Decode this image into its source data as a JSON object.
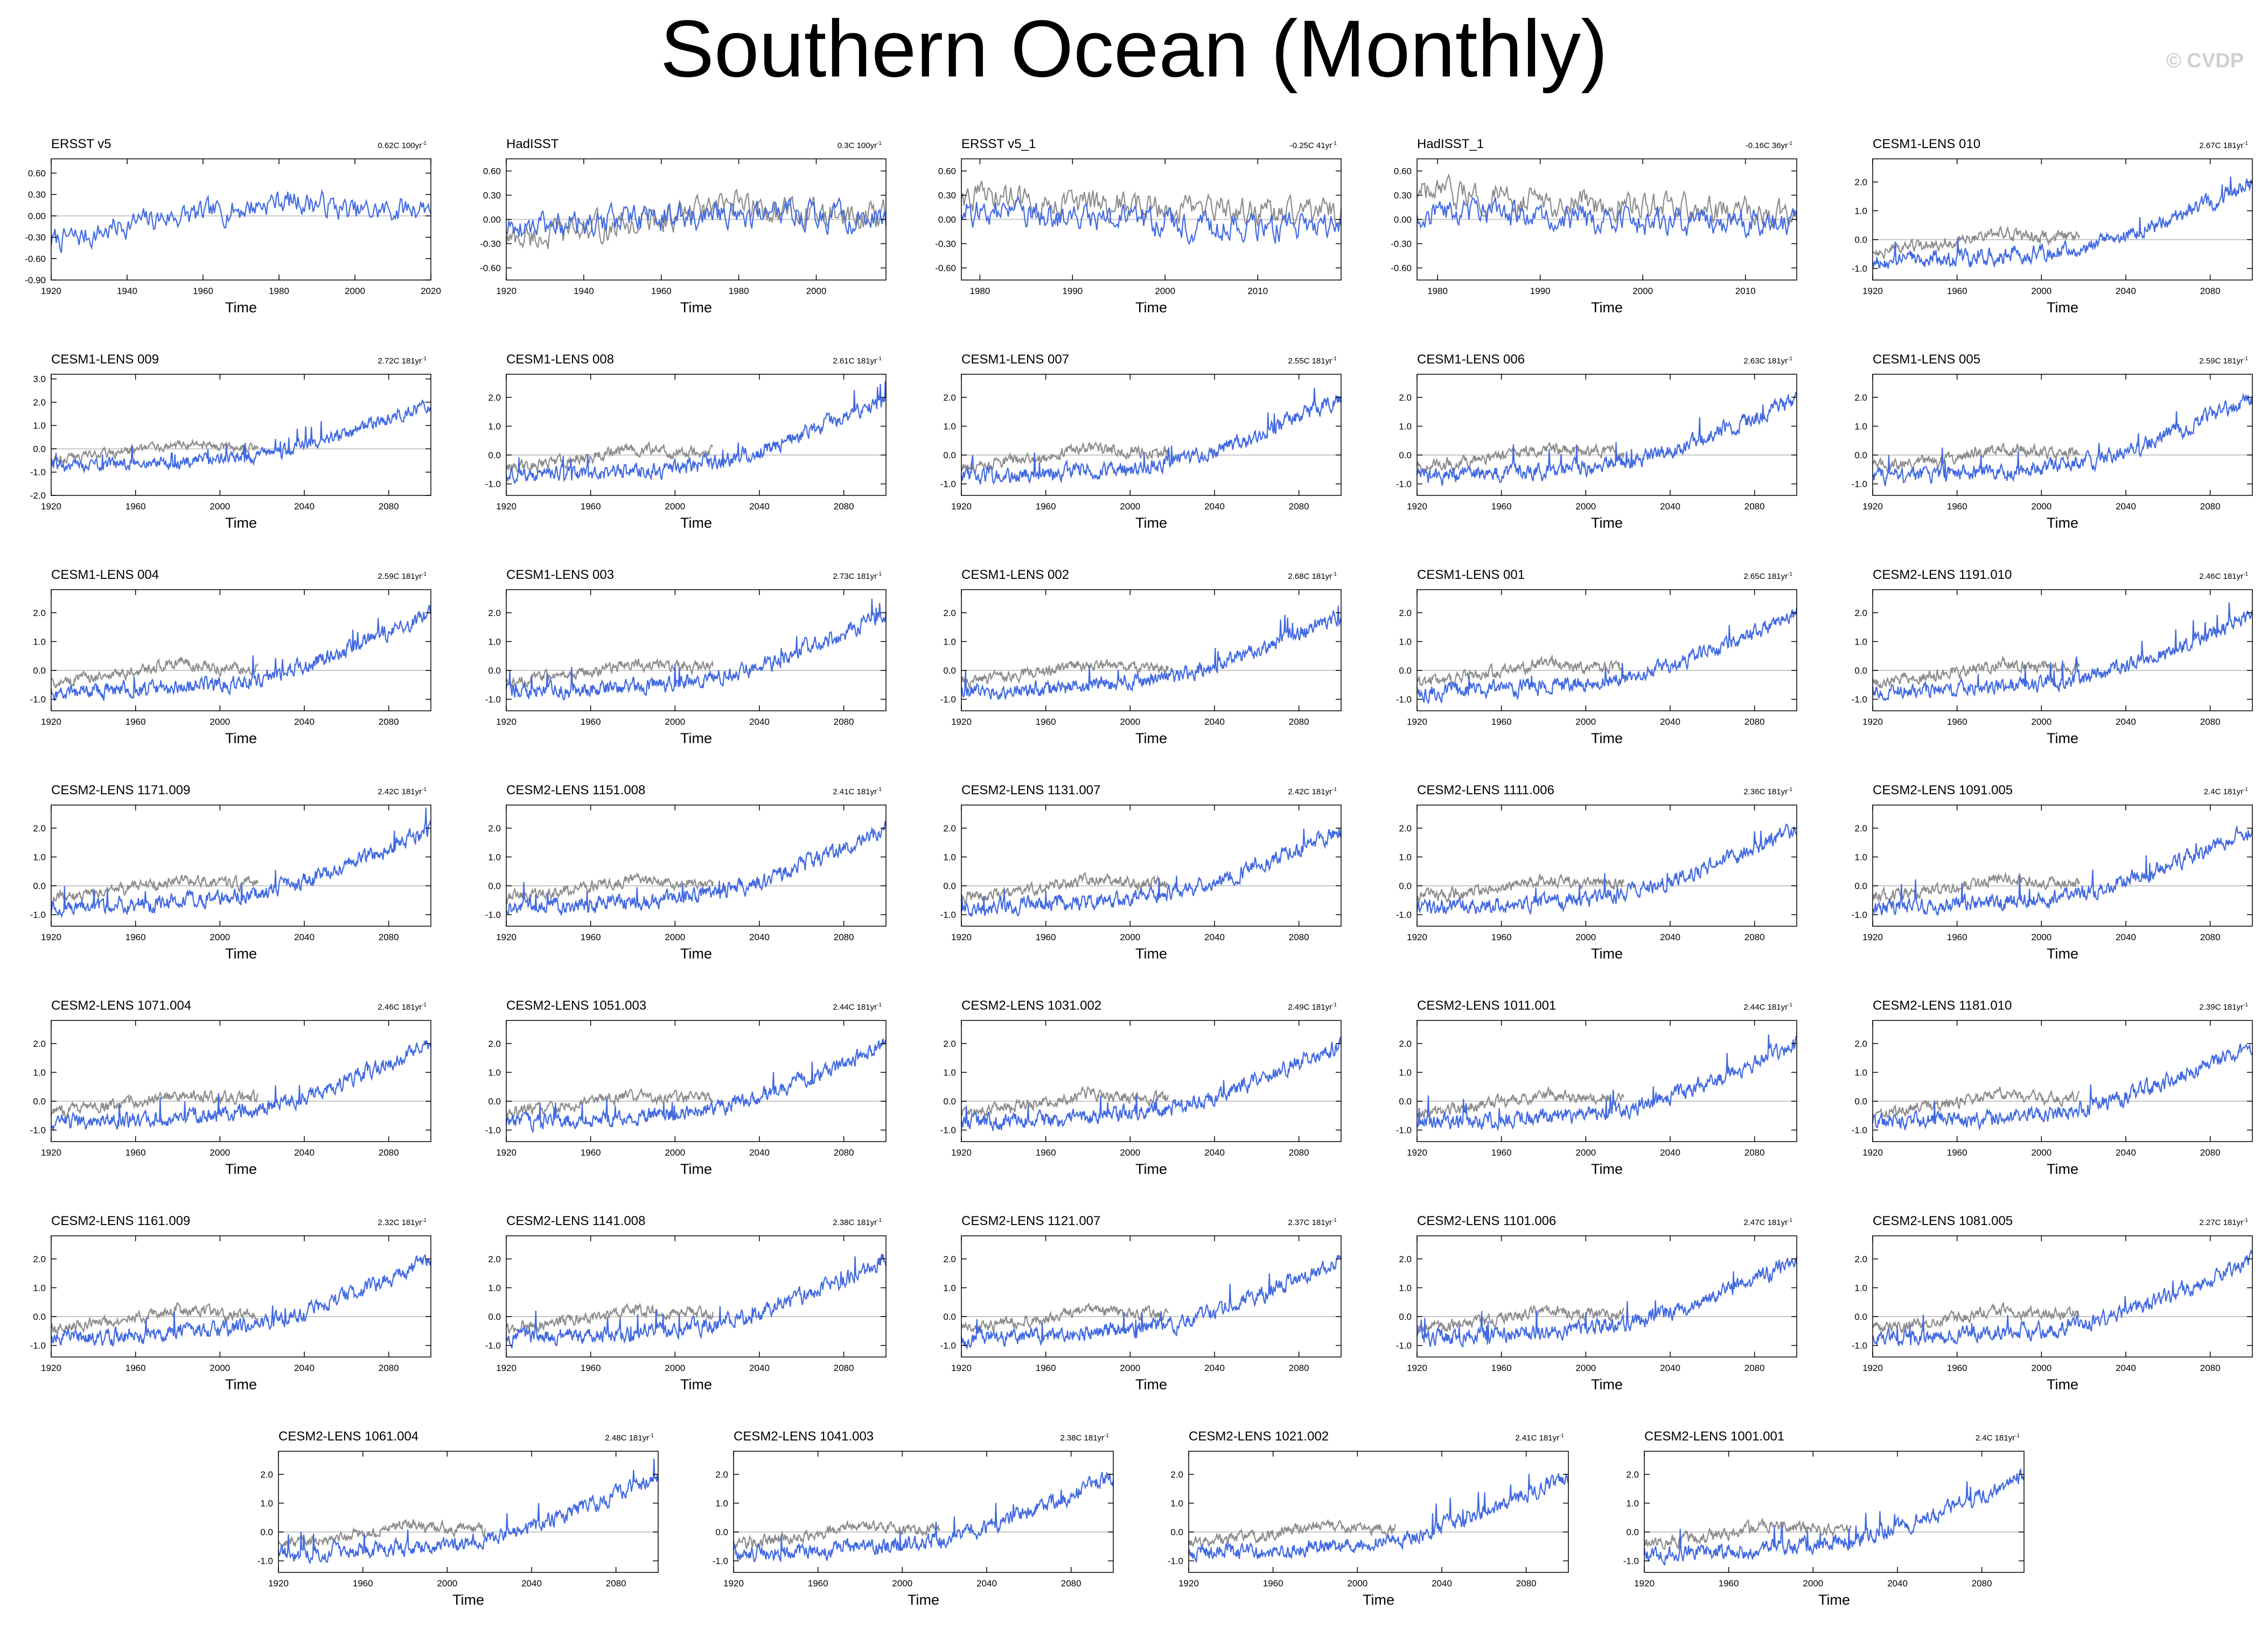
{
  "title": "Southern Ocean (Monthly)",
  "watermark": "© CVDP",
  "colors": {
    "model": "#4169e1",
    "obs": "#8c8c8c",
    "zero_line": "#c8c8c8",
    "frame": "#000000"
  },
  "chart_data": [
    {
      "type": "line",
      "title": "ERSST v5",
      "trend": "0.62C 100yr",
      "xlabel": "Time",
      "xlim": [
        1920,
        2020
      ],
      "ylim": [
        -0.9,
        0.8
      ],
      "xticks": [
        1920,
        1940,
        1960,
        1980,
        2000,
        2020
      ],
      "yticks": [
        -0.9,
        -0.6,
        -0.3,
        0.0,
        0.3,
        0.6
      ],
      "ytick_labels": [
        "-0.90",
        "-0.60",
        "-0.30",
        "0.00",
        "0.30",
        "0.60"
      ],
      "series": [
        {
          "color": "blue",
          "x": [
            1920,
            1930,
            1940,
            1950,
            1960,
            1970,
            1980,
            1990,
            2000,
            2010,
            2020
          ],
          "y": [
            -0.35,
            -0.28,
            -0.12,
            -0.02,
            0.02,
            0.1,
            0.22,
            0.18,
            0.05,
            0.08,
            0.15
          ]
        }
      ]
    },
    {
      "type": "line",
      "title": "HadISST",
      "trend": "0.3C 100yr",
      "xlabel": "Time",
      "xlim": [
        1920,
        2018
      ],
      "ylim": [
        -0.75,
        0.75
      ],
      "xticks": [
        1920,
        1940,
        1960,
        1980,
        2000
      ],
      "yticks": [
        -0.6,
        -0.3,
        0.0,
        0.3,
        0.6
      ],
      "ytick_labels": [
        "-0.60",
        "-0.30",
        "0.00",
        "0.30",
        "0.60"
      ],
      "series": [
        {
          "color": "gray",
          "x": [
            1920,
            1930,
            1940,
            1950,
            1960,
            1970,
            1980,
            1990,
            2000,
            2010,
            2018
          ],
          "y": [
            -0.25,
            -0.2,
            -0.12,
            -0.08,
            0.0,
            0.1,
            0.18,
            0.1,
            0.05,
            0.02,
            0.05
          ]
        },
        {
          "color": "blue",
          "x": [
            1920,
            1930,
            1940,
            1950,
            1960,
            1970,
            1980,
            1990,
            2000,
            2010,
            2018
          ],
          "y": [
            -0.1,
            -0.08,
            -0.05,
            0.0,
            0.02,
            0.05,
            0.1,
            0.05,
            0.03,
            0.02,
            0.0
          ]
        }
      ]
    },
    {
      "type": "line",
      "title": "ERSST v5_1",
      "trend": "-0.25C 41yr",
      "xlabel": "Time",
      "xlim": [
        1978,
        2019
      ],
      "ylim": [
        -0.75,
        0.75
      ],
      "xticks": [
        1980,
        1990,
        2000,
        2010
      ],
      "yticks": [
        -0.6,
        -0.3,
        0.0,
        0.3,
        0.6
      ],
      "ytick_labels": [
        "-0.60",
        "-0.30",
        "0.00",
        "0.30",
        "0.60"
      ],
      "series": [
        {
          "color": "gray",
          "x": [
            1978,
            1985,
            1990,
            1995,
            2000,
            2005,
            2010,
            2015,
            2019
          ],
          "y": [
            0.3,
            0.25,
            0.2,
            0.18,
            0.15,
            0.1,
            0.1,
            0.08,
            0.1
          ]
        },
        {
          "color": "blue",
          "x": [
            1978,
            1985,
            1990,
            1995,
            2000,
            2005,
            2010,
            2015,
            2019
          ],
          "y": [
            0.1,
            0.05,
            0.02,
            0.0,
            -0.05,
            -0.08,
            -0.1,
            -0.1,
            -0.05
          ]
        }
      ]
    },
    {
      "type": "line",
      "title": "HadISST_1",
      "trend": "-0.16C 36yr",
      "xlabel": "Time",
      "xlim": [
        1978,
        2015
      ],
      "ylim": [
        -0.75,
        0.75
      ],
      "xticks": [
        1980,
        1990,
        2000,
        2010
      ],
      "yticks": [
        -0.6,
        -0.3,
        0.0,
        0.3,
        0.6
      ],
      "ytick_labels": [
        "-0.60",
        "-0.30",
        "0.00",
        "0.30",
        "0.60"
      ],
      "series": [
        {
          "color": "gray",
          "x": [
            1978,
            1985,
            1990,
            1995,
            2000,
            2005,
            2010,
            2015
          ],
          "y": [
            0.3,
            0.28,
            0.22,
            0.2,
            0.15,
            0.12,
            0.1,
            0.08
          ]
        },
        {
          "color": "blue",
          "x": [
            1978,
            1985,
            1990,
            1995,
            2000,
            2005,
            2010,
            2015
          ],
          "y": [
            0.08,
            0.05,
            0.02,
            0.0,
            -0.02,
            -0.05,
            -0.05,
            -0.08
          ]
        }
      ]
    },
    {
      "type": "line",
      "title": "CESM1-LENS 010",
      "trend": "2.67C 181yr"
    },
    {
      "type": "line",
      "title": "CESM1-LENS 009",
      "trend": "2.72C 181yr",
      "ylim": [
        -2.0,
        3.2
      ],
      "yticks": [
        -2.0,
        -1.0,
        0.0,
        1.0,
        2.0,
        3.0
      ]
    },
    {
      "type": "line",
      "title": "CESM1-LENS 008",
      "trend": "2.61C 181yr"
    },
    {
      "type": "line",
      "title": "CESM1-LENS 007",
      "trend": "2.55C 181yr"
    },
    {
      "type": "line",
      "title": "CESM1-LENS 006",
      "trend": "2.63C 181yr"
    },
    {
      "type": "line",
      "title": "CESM1-LENS 005",
      "trend": "2.59C 181yr"
    },
    {
      "type": "line",
      "title": "CESM1-LENS 004",
      "trend": "2.59C 181yr"
    },
    {
      "type": "line",
      "title": "CESM1-LENS 003",
      "trend": "2.73C 181yr"
    },
    {
      "type": "line",
      "title": "CESM1-LENS 002",
      "trend": "2.68C 181yr"
    },
    {
      "type": "line",
      "title": "CESM1-LENS 001",
      "trend": "2.65C 181yr"
    },
    {
      "type": "line",
      "title": "CESM2-LENS 1191.010",
      "trend": "2.46C 181yr"
    },
    {
      "type": "line",
      "title": "CESM2-LENS 1171.009",
      "trend": "2.42C 181yr"
    },
    {
      "type": "line",
      "title": "CESM2-LENS 1151.008",
      "trend": "2.41C 181yr"
    },
    {
      "type": "line",
      "title": "CESM2-LENS 1131.007",
      "trend": "2.42C 181yr"
    },
    {
      "type": "line",
      "title": "CESM2-LENS 1111.006",
      "trend": "2.36C 181yr"
    },
    {
      "type": "line",
      "title": "CESM2-LENS 1091.005",
      "trend": "2.4C 181yr"
    },
    {
      "type": "line",
      "title": "CESM2-LENS 1071.004",
      "trend": "2.46C 181yr"
    },
    {
      "type": "line",
      "title": "CESM2-LENS 1051.003",
      "trend": "2.44C 181yr"
    },
    {
      "type": "line",
      "title": "CESM2-LENS 1031.002",
      "trend": "2.49C 181yr"
    },
    {
      "type": "line",
      "title": "CESM2-LENS 1011.001",
      "trend": "2.44C 181yr"
    },
    {
      "type": "line",
      "title": "CESM2-LENS 1181.010",
      "trend": "2.39C 181yr"
    },
    {
      "type": "line",
      "title": "CESM2-LENS 1161.009",
      "trend": "2.32C 181yr"
    },
    {
      "type": "line",
      "title": "CESM2-LENS 1141.008",
      "trend": "2.38C 181yr"
    },
    {
      "type": "line",
      "title": "CESM2-LENS 1121.007",
      "trend": "2.37C 181yr"
    },
    {
      "type": "line",
      "title": "CESM2-LENS 1101.006",
      "trend": "2.47C 181yr"
    },
    {
      "type": "line",
      "title": "CESM2-LENS 1081.005",
      "trend": "2.27C 181yr"
    },
    {
      "type": "line",
      "title": "CESM2-LENS 1061.004",
      "trend": "2.48C 181yr"
    },
    {
      "type": "line",
      "title": "CESM2-LENS 1041.003",
      "trend": "2.38C 181yr"
    },
    {
      "type": "line",
      "title": "CESM2-LENS 1021.002",
      "trend": "2.41C 181yr"
    },
    {
      "type": "line",
      "title": "CESM2-LENS 1001.001",
      "trend": "2.4C 181yr"
    }
  ],
  "model_defaults": {
    "xlabel": "Time",
    "xlim": [
      1920,
      2100
    ],
    "ylim": [
      -1.4,
      2.8
    ],
    "xticks": [
      1920,
      1960,
      2000,
      2040,
      2080
    ],
    "yticks": [
      -1.0,
      0.0,
      1.0,
      2.0
    ],
    "obs_series": {
      "color": "gray",
      "x": [
        1920,
        1940,
        1960,
        1980,
        2000,
        2018
      ],
      "y": [
        -0.4,
        -0.25,
        -0.05,
        0.25,
        0.1,
        0.1
      ]
    },
    "model_series": {
      "color": "blue",
      "x": [
        1920,
        1940,
        1960,
        1980,
        2000,
        2020,
        2040,
        2060,
        2080,
        2100
      ],
      "y": [
        -0.75,
        -0.7,
        -0.65,
        -0.55,
        -0.45,
        -0.25,
        0.15,
        0.7,
        1.3,
        1.95
      ]
    }
  }
}
